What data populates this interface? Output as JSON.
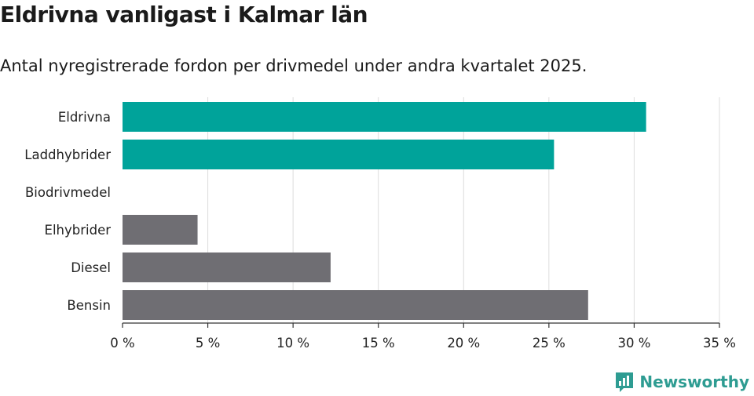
{
  "title": "Eldrivna vanligast i Kalmar län",
  "subtitle": "Antal nyregistrerade fordon per drivmedel under andra kvartalet 2025.",
  "brand": "Newsworthy",
  "colors": {
    "highlight": "#00a39a",
    "default": "#6f6e73",
    "grid": "#dddddd",
    "axis": "#333333",
    "brand": "#2e9c92"
  },
  "chart_data": {
    "type": "bar",
    "orientation": "horizontal",
    "categories": [
      "Eldrivna",
      "Laddhybrider",
      "Biodrivmedel",
      "Elhybrider",
      "Diesel",
      "Bensin"
    ],
    "values": [
      30.7,
      25.3,
      0,
      4.4,
      12.2,
      27.3
    ],
    "highlight": [
      true,
      true,
      false,
      false,
      false,
      false
    ],
    "xlim": [
      0,
      35
    ],
    "xticks": [
      0,
      5,
      10,
      15,
      20,
      25,
      30,
      35
    ],
    "xtick_labels": [
      "0 %",
      "5 %",
      "10 %",
      "15 %",
      "20 %",
      "25 %",
      "30 %",
      "35 %"
    ],
    "grid": "vertical"
  }
}
